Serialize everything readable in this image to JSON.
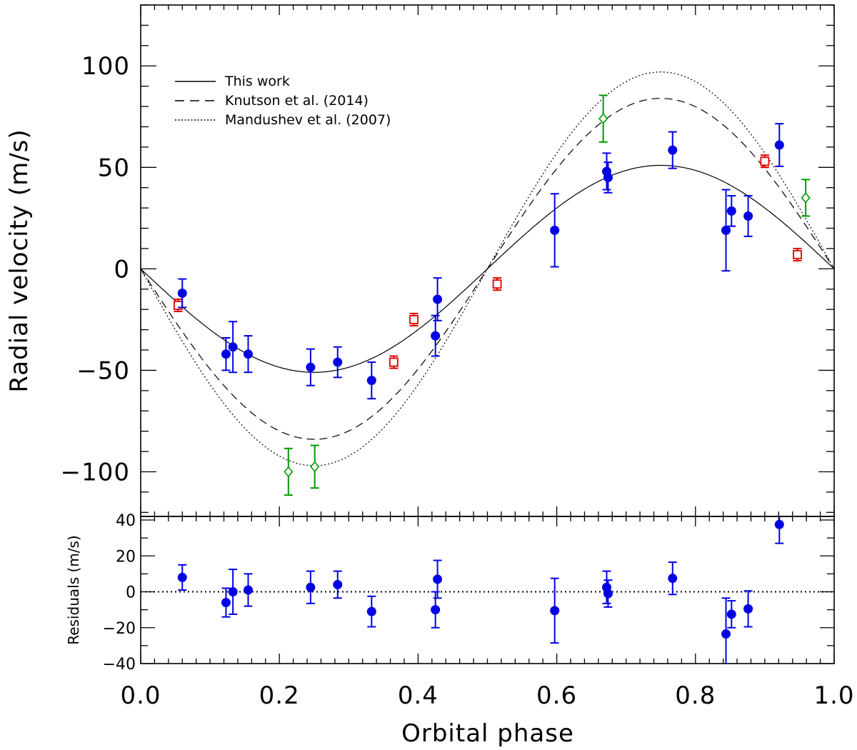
{
  "chart_data": [
    {
      "type": "scatter",
      "name": "radial-velocity",
      "ylabel": "Radial velocity (m/s)",
      "xlim": [
        0.0,
        1.0
      ],
      "ylim": [
        -122,
        130
      ],
      "yticks": [
        -100,
        -50,
        0,
        50,
        100
      ],
      "ytick_labels": [
        "−100",
        "−50",
        "0",
        "50",
        "100"
      ],
      "legend_position": "top-left",
      "colors": {
        "blue": "#0000e6",
        "red": "#e00000",
        "green": "#009900",
        "black": "#000000"
      },
      "models": [
        {
          "name": "This work",
          "style": "solid",
          "K": 51,
          "phase_shape": "-sin(2*pi*phase)"
        },
        {
          "name": "Knutson et al. (2014)",
          "style": "dashed",
          "K": 84,
          "phase_shape": "-sin(2*pi*phase)"
        },
        {
          "name": "Mandushev et al. (2007)",
          "style": "dotted",
          "K": 97,
          "phase_shape": "-sin(2*pi*phase)"
        }
      ],
      "series": [
        {
          "name": "blue circles",
          "marker": "filled-circle",
          "color": "#0000e6",
          "points": [
            {
              "x": 0.06,
              "y": -12,
              "err": 7
            },
            {
              "x": 0.123,
              "y": -42,
              "err": 8
            },
            {
              "x": 0.133,
              "y": -38.5,
              "err": 12.5
            },
            {
              "x": 0.155,
              "y": -42,
              "err": 9
            },
            {
              "x": 0.245,
              "y": -48.5,
              "err": 9
            },
            {
              "x": 0.284,
              "y": -46,
              "err": 7.5
            },
            {
              "x": 0.333,
              "y": -55,
              "err": 9
            },
            {
              "x": 0.425,
              "y": -33,
              "err": 10
            },
            {
              "x": 0.428,
              "y": -15,
              "err": 10.5
            },
            {
              "x": 0.597,
              "y": 19,
              "err": 18
            },
            {
              "x": 0.672,
              "y": 48,
              "err": 9
            },
            {
              "x": 0.674,
              "y": 45,
              "err": 7.5
            },
            {
              "x": 0.767,
              "y": 58.5,
              "err": 9
            },
            {
              "x": 0.844,
              "y": 19,
              "err": 20
            },
            {
              "x": 0.852,
              "y": 28.5,
              "err": 7.5
            },
            {
              "x": 0.876,
              "y": 26,
              "err": 10
            },
            {
              "x": 0.921,
              "y": 61,
              "err": 10.5
            }
          ]
        },
        {
          "name": "red squares",
          "marker": "open-square",
          "color": "#e00000",
          "points": [
            {
              "x": 0.054,
              "y": -18,
              "err": 3
            },
            {
              "x": 0.365,
              "y": -46,
              "err": 3
            },
            {
              "x": 0.394,
              "y": -25,
              "err": 3
            },
            {
              "x": 0.514,
              "y": -7.5,
              "err": 3
            },
            {
              "x": 0.9,
              "y": 53,
              "err": 3
            },
            {
              "x": 0.947,
              "y": 7,
              "err": 3
            }
          ]
        },
        {
          "name": "green diamonds",
          "marker": "open-diamond",
          "color": "#009900",
          "points": [
            {
              "x": 0.213,
              "y": -100,
              "err": 11.5
            },
            {
              "x": 0.251,
              "y": -97.5,
              "err": 10.5
            },
            {
              "x": 0.667,
              "y": 74,
              "err": 11.5
            },
            {
              "x": 0.959,
              "y": 35,
              "err": 9
            }
          ]
        }
      ]
    },
    {
      "type": "scatter",
      "name": "residuals",
      "xlabel": "Orbital phase",
      "ylabel": "Residuals (m/s)",
      "xlim": [
        0.0,
        1.0
      ],
      "ylim": [
        -40,
        42
      ],
      "xticks": [
        0.0,
        0.2,
        0.4,
        0.6,
        0.8,
        1.0
      ],
      "xtick_labels": [
        "0.0",
        "0.2",
        "0.4",
        "0.6",
        "0.8",
        "1.0"
      ],
      "yticks": [
        -40,
        -20,
        0,
        20,
        40
      ],
      "ytick_labels": [
        "−40",
        "−20",
        "0",
        "20",
        "40"
      ],
      "zero_line": "dotted",
      "series": [
        {
          "name": "blue residuals",
          "marker": "filled-circle",
          "color": "#0000e6",
          "points": [
            {
              "x": 0.06,
              "y": 8,
              "err": 7
            },
            {
              "x": 0.123,
              "y": -6,
              "err": 8
            },
            {
              "x": 0.133,
              "y": 0,
              "err": 12.5
            },
            {
              "x": 0.155,
              "y": 1,
              "err": 9
            },
            {
              "x": 0.245,
              "y": 2.5,
              "err": 9
            },
            {
              "x": 0.284,
              "y": 4,
              "err": 7.5
            },
            {
              "x": 0.333,
              "y": -11,
              "err": 8.5
            },
            {
              "x": 0.425,
              "y": -10,
              "err": 10
            },
            {
              "x": 0.428,
              "y": 7,
              "err": 10.5
            },
            {
              "x": 0.597,
              "y": -10.5,
              "err": 18
            },
            {
              "x": 0.672,
              "y": 2.5,
              "err": 9
            },
            {
              "x": 0.674,
              "y": -1,
              "err": 7.5
            },
            {
              "x": 0.767,
              "y": 7.5,
              "err": 9
            },
            {
              "x": 0.844,
              "y": -23.5,
              "err": 20
            },
            {
              "x": 0.852,
              "y": -12.5,
              "err": 7.5
            },
            {
              "x": 0.876,
              "y": -9.5,
              "err": 10
            },
            {
              "x": 0.921,
              "y": 37.5,
              "err": 10.5
            }
          ]
        }
      ]
    }
  ]
}
